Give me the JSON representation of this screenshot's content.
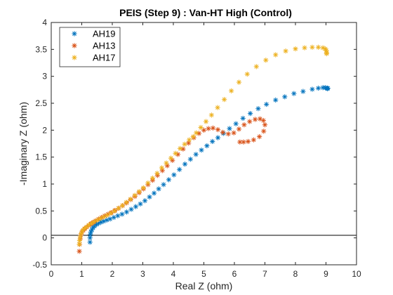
{
  "chart_data": {
    "type": "scatter",
    "title": "PEIS (Step 9) : Van-HT High (Control)",
    "xlabel": "Real Z (ohm)",
    "ylabel": "-Imaginary Z (ohm)",
    "xlim": [
      0,
      10
    ],
    "ylim": [
      -0.5,
      4
    ],
    "xticks": [
      "0",
      "1",
      "2",
      "3",
      "4",
      "5",
      "6",
      "7",
      "8",
      "9",
      "10"
    ],
    "yticks": [
      "-0.5",
      "0",
      "0.5",
      "1",
      "1.5",
      "2",
      "2.5",
      "3",
      "3.5",
      "4"
    ],
    "grid": false,
    "zero_line": true,
    "legend_position": "top-left",
    "marker": "asterisk",
    "series": [
      {
        "name": "AH19",
        "color": "#0072BD",
        "points": [
          [
            1.27,
            -0.08
          ],
          [
            1.27,
            0.0
          ],
          [
            1.28,
            0.06
          ],
          [
            1.3,
            0.11
          ],
          [
            1.33,
            0.15
          ],
          [
            1.37,
            0.19
          ],
          [
            1.42,
            0.22
          ],
          [
            1.48,
            0.25
          ],
          [
            1.55,
            0.27
          ],
          [
            1.63,
            0.29
          ],
          [
            1.72,
            0.31
          ],
          [
            1.82,
            0.33
          ],
          [
            1.93,
            0.35
          ],
          [
            2.05,
            0.38
          ],
          [
            2.18,
            0.41
          ],
          [
            2.32,
            0.44
          ],
          [
            2.47,
            0.48
          ],
          [
            2.62,
            0.53
          ],
          [
            2.77,
            0.58
          ],
          [
            2.92,
            0.63
          ],
          [
            3.07,
            0.69
          ],
          [
            3.22,
            0.76
          ],
          [
            3.37,
            0.83
          ],
          [
            3.52,
            0.91
          ],
          [
            3.68,
            0.99
          ],
          [
            3.85,
            1.08
          ],
          [
            4.02,
            1.17
          ],
          [
            4.2,
            1.27
          ],
          [
            4.38,
            1.37
          ],
          [
            4.56,
            1.46
          ],
          [
            4.74,
            1.55
          ],
          [
            4.92,
            1.63
          ],
          [
            5.1,
            1.71
          ],
          [
            5.28,
            1.79
          ],
          [
            5.46,
            1.86
          ],
          [
            5.64,
            1.94
          ],
          [
            5.84,
            2.03
          ],
          [
            6.05,
            2.12
          ],
          [
            6.28,
            2.22
          ],
          [
            6.52,
            2.31
          ],
          [
            6.78,
            2.4
          ],
          [
            7.05,
            2.48
          ],
          [
            7.35,
            2.56
          ],
          [
            7.65,
            2.62
          ],
          [
            7.95,
            2.68
          ],
          [
            8.25,
            2.72
          ],
          [
            8.55,
            2.76
          ],
          [
            8.75,
            2.78
          ],
          [
            8.9,
            2.79
          ],
          [
            8.98,
            2.79
          ],
          [
            9.03,
            2.78
          ],
          [
            9.05,
            2.77
          ],
          [
            9.06,
            2.78
          ]
        ]
      },
      {
        "name": "AH13",
        "color": "#D95319",
        "points": [
          [
            0.92,
            -0.25
          ],
          [
            0.93,
            -0.12
          ],
          [
            0.95,
            -0.02
          ],
          [
            0.97,
            0.05
          ],
          [
            1.0,
            0.1
          ],
          [
            1.05,
            0.14
          ],
          [
            1.1,
            0.17
          ],
          [
            1.16,
            0.2
          ],
          [
            1.23,
            0.23
          ],
          [
            1.3,
            0.26
          ],
          [
            1.38,
            0.29
          ],
          [
            1.46,
            0.32
          ],
          [
            1.55,
            0.35
          ],
          [
            1.65,
            0.38
          ],
          [
            1.75,
            0.41
          ],
          [
            1.86,
            0.44
          ],
          [
            1.97,
            0.47
          ],
          [
            2.09,
            0.51
          ],
          [
            2.21,
            0.55
          ],
          [
            2.34,
            0.6
          ],
          [
            2.47,
            0.65
          ],
          [
            2.6,
            0.71
          ],
          [
            2.74,
            0.77
          ],
          [
            2.88,
            0.84
          ],
          [
            3.02,
            0.91
          ],
          [
            3.17,
            0.99
          ],
          [
            3.32,
            1.07
          ],
          [
            3.48,
            1.16
          ],
          [
            3.64,
            1.25
          ],
          [
            3.8,
            1.34
          ],
          [
            3.97,
            1.44
          ],
          [
            4.15,
            1.55
          ],
          [
            4.32,
            1.65
          ],
          [
            4.5,
            1.76
          ],
          [
            4.67,
            1.86
          ],
          [
            4.84,
            1.94
          ],
          [
            5.0,
            2.0
          ],
          [
            5.15,
            2.03
          ],
          [
            5.3,
            2.04
          ],
          [
            5.46,
            2.01
          ],
          [
            5.62,
            1.96
          ],
          [
            5.8,
            1.93
          ],
          [
            5.98,
            1.95
          ],
          [
            6.15,
            2.02
          ],
          [
            6.32,
            2.1
          ],
          [
            6.5,
            2.16
          ],
          [
            6.68,
            2.2
          ],
          [
            6.84,
            2.21
          ],
          [
            6.95,
            2.18
          ],
          [
            7.0,
            2.1
          ],
          [
            6.96,
            1.98
          ],
          [
            6.82,
            1.88
          ],
          [
            6.63,
            1.82
          ],
          [
            6.45,
            1.79
          ],
          [
            6.3,
            1.78
          ],
          [
            6.18,
            1.78
          ]
        ]
      },
      {
        "name": "AH17",
        "color": "#EDB120",
        "points": [
          [
            0.92,
            -0.12
          ],
          [
            0.93,
            -0.05
          ],
          [
            0.95,
            0.02
          ],
          [
            0.98,
            0.08
          ],
          [
            1.02,
            0.13
          ],
          [
            1.08,
            0.17
          ],
          [
            1.15,
            0.2
          ],
          [
            1.23,
            0.24
          ],
          [
            1.32,
            0.27
          ],
          [
            1.41,
            0.3
          ],
          [
            1.51,
            0.33
          ],
          [
            1.61,
            0.36
          ],
          [
            1.72,
            0.39
          ],
          [
            1.83,
            0.42
          ],
          [
            1.95,
            0.46
          ],
          [
            2.07,
            0.5
          ],
          [
            2.2,
            0.55
          ],
          [
            2.33,
            0.6
          ],
          [
            2.46,
            0.66
          ],
          [
            2.6,
            0.72
          ],
          [
            2.74,
            0.79
          ],
          [
            2.88,
            0.86
          ],
          [
            3.02,
            0.93
          ],
          [
            3.17,
            1.02
          ],
          [
            3.32,
            1.11
          ],
          [
            3.47,
            1.2
          ],
          [
            3.62,
            1.3
          ],
          [
            3.77,
            1.39
          ],
          [
            3.92,
            1.48
          ],
          [
            4.07,
            1.57
          ],
          [
            4.22,
            1.66
          ],
          [
            4.37,
            1.74
          ],
          [
            4.52,
            1.82
          ],
          [
            4.65,
            1.88
          ],
          [
            4.75,
            1.95
          ],
          [
            4.9,
            2.05
          ],
          [
            5.07,
            2.16
          ],
          [
            5.25,
            2.28
          ],
          [
            5.45,
            2.42
          ],
          [
            5.67,
            2.57
          ],
          [
            5.9,
            2.73
          ],
          [
            6.15,
            2.89
          ],
          [
            6.42,
            3.04
          ],
          [
            6.72,
            3.18
          ],
          [
            7.03,
            3.3
          ],
          [
            7.35,
            3.4
          ],
          [
            7.68,
            3.47
          ],
          [
            8.0,
            3.51
          ],
          [
            8.3,
            3.53
          ],
          [
            8.55,
            3.54
          ],
          [
            8.75,
            3.54
          ],
          [
            8.9,
            3.53
          ],
          [
            8.98,
            3.51
          ],
          [
            9.01,
            3.48
          ],
          [
            9.02,
            3.44
          ],
          [
            9.02,
            3.42
          ]
        ]
      }
    ]
  }
}
